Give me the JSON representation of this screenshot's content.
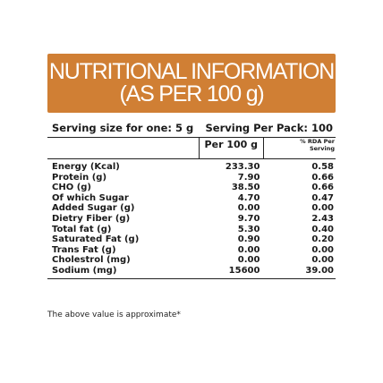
{
  "header": {
    "title_line1": "NUTRITIONAL INFORMATION",
    "title_line2": "(AS PER 100 g)",
    "background_color": "#d07f34",
    "text_color": "#ffffff"
  },
  "serving": {
    "size_label": "Serving size for one: 5 g",
    "per_pack_label": "Serving Per Pack: 100"
  },
  "table": {
    "columns": {
      "per100": "Per 100 g",
      "rda_line1": "% RDA Per",
      "rda_line2": "Serving"
    },
    "rows": [
      {
        "name": "Energy (Kcal)",
        "per100": "233.30",
        "rda": "0.58"
      },
      {
        "name": "Protein (g)",
        "per100": "7.90",
        "rda": "0.66"
      },
      {
        "name": "CHO (g)",
        "per100": "38.50",
        "rda": "0.66"
      },
      {
        "name": "Of which Sugar",
        "per100": "4.70",
        "rda": "0.47"
      },
      {
        "name": "Added Sugar (g)",
        "per100": "0.00",
        "rda": "0.00"
      },
      {
        "name": "Dietry Fiber (g)",
        "per100": "9.70",
        "rda": "2.43"
      },
      {
        "name": "Total fat (g)",
        "per100": "5.30",
        "rda": "0.40"
      },
      {
        "name": "Saturated Fat (g)",
        "per100": "0.90",
        "rda": "0.20"
      },
      {
        "name": "Trans Fat (g)",
        "per100": "0.00",
        "rda": "0.00"
      },
      {
        "name": "Cholestrol (mg)",
        "per100": "0.00",
        "rda": "0.00"
      },
      {
        "name": "Sodium (mg)",
        "per100": "15600",
        "rda": "39.00"
      }
    ]
  },
  "footnote": "The above value is approximate*"
}
